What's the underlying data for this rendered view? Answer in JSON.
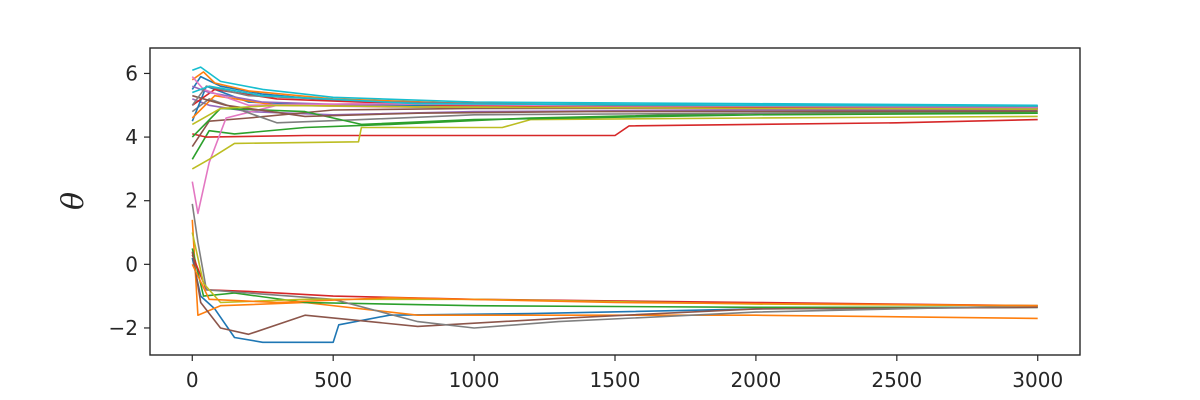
{
  "chart_data": {
    "type": "line",
    "ylabel": "θ",
    "xlabel": "",
    "xlim": [
      -150,
      3150
    ],
    "ylim": [
      -2.85,
      6.8
    ],
    "xticks": [
      0,
      500,
      1000,
      1500,
      2000,
      2500,
      3000
    ],
    "yticks": [
      -2,
      0,
      2,
      4,
      6
    ],
    "xtick_labels": [
      "0",
      "500",
      "1000",
      "1500",
      "2000",
      "2500",
      "3000"
    ],
    "ytick_labels": [
      "−2",
      "0",
      "2",
      "4",
      "6"
    ],
    "grid": false,
    "legend": "none",
    "palette": [
      "#1f77b4",
      "#ff7f0e",
      "#2ca02c",
      "#d62728",
      "#9467bd",
      "#8c564b",
      "#e377c2",
      "#7f7f7f",
      "#bcbd22",
      "#17becf"
    ],
    "upper_group": {
      "description": "chains converging near θ ≈ 4.9",
      "series": [
        {
          "color": "#1f77b4",
          "points": [
            [
              0,
              5.5
            ],
            [
              30,
              5.9
            ],
            [
              100,
              5.6
            ],
            [
              250,
              5.35
            ],
            [
              500,
              5.15
            ],
            [
              1000,
              5.05
            ],
            [
              2000,
              5.0
            ],
            [
              3000,
              4.97
            ]
          ]
        },
        {
          "color": "#ff7f0e",
          "points": [
            [
              0,
              5.8
            ],
            [
              40,
              6.05
            ],
            [
              80,
              5.7
            ],
            [
              200,
              5.45
            ],
            [
              500,
              5.2
            ],
            [
              1000,
              5.05
            ],
            [
              2000,
              4.98
            ],
            [
              3000,
              4.95
            ]
          ]
        },
        {
          "color": "#2ca02c",
          "points": [
            [
              0,
              3.3
            ],
            [
              60,
              4.2
            ],
            [
              150,
              4.1
            ],
            [
              400,
              4.3
            ],
            [
              700,
              4.4
            ],
            [
              1200,
              4.6
            ],
            [
              2000,
              4.75
            ],
            [
              3000,
              4.8
            ]
          ]
        },
        {
          "color": "#d62728",
          "points": [
            [
              0,
              4.1
            ],
            [
              50,
              4.0
            ],
            [
              400,
              4.05
            ],
            [
              1500,
              4.05
            ],
            [
              1550,
              4.35
            ],
            [
              2500,
              4.45
            ],
            [
              3000,
              4.55
            ]
          ]
        },
        {
          "color": "#9467bd",
          "points": [
            [
              0,
              5.2
            ],
            [
              60,
              5.0
            ],
            [
              200,
              4.8
            ],
            [
              500,
              4.7
            ],
            [
              1000,
              4.8
            ],
            [
              2000,
              4.85
            ],
            [
              3000,
              4.85
            ]
          ]
        },
        {
          "color": "#8c564b",
          "points": [
            [
              0,
              3.7
            ],
            [
              60,
              4.5
            ],
            [
              200,
              4.6
            ],
            [
              500,
              4.85
            ],
            [
              1000,
              4.9
            ],
            [
              2000,
              4.9
            ],
            [
              3000,
              4.88
            ]
          ]
        },
        {
          "color": "#e377c2",
          "points": [
            [
              0,
              2.6
            ],
            [
              20,
              1.6
            ],
            [
              60,
              3.2
            ],
            [
              120,
              4.6
            ],
            [
              300,
              5.0
            ],
            [
              700,
              4.95
            ],
            [
              1500,
              4.93
            ],
            [
              3000,
              4.9
            ]
          ]
        },
        {
          "color": "#7f7f7f",
          "points": [
            [
              0,
              4.8
            ],
            [
              60,
              5.2
            ],
            [
              300,
              4.45
            ],
            [
              600,
              4.55
            ],
            [
              1000,
              4.7
            ],
            [
              2000,
              4.75
            ],
            [
              3000,
              4.75
            ]
          ]
        },
        {
          "color": "#bcbd22",
          "points": [
            [
              0,
              3.0
            ],
            [
              60,
              3.3
            ],
            [
              150,
              3.8
            ],
            [
              590,
              3.85
            ],
            [
              600,
              4.3
            ],
            [
              1100,
              4.3
            ],
            [
              1200,
              4.55
            ],
            [
              2000,
              4.6
            ],
            [
              3000,
              4.65
            ]
          ]
        },
        {
          "color": "#17becf",
          "points": [
            [
              0,
              6.1
            ],
            [
              30,
              6.2
            ],
            [
              100,
              5.75
            ],
            [
              250,
              5.5
            ],
            [
              500,
              5.25
            ],
            [
              1000,
              5.1
            ],
            [
              2000,
              5.05
            ],
            [
              3000,
              5.0
            ]
          ]
        },
        {
          "color": "#1f77b4",
          "points": [
            [
              0,
              4.5
            ],
            [
              50,
              5.6
            ],
            [
              200,
              5.1
            ],
            [
              500,
              5.0
            ],
            [
              1200,
              5.0
            ],
            [
              3000,
              4.97
            ]
          ]
        },
        {
          "color": "#ff7f0e",
          "points": [
            [
              0,
              4.6
            ],
            [
              80,
              5.3
            ],
            [
              300,
              5.0
            ],
            [
              800,
              4.95
            ],
            [
              2000,
              4.92
            ],
            [
              3000,
              4.9
            ]
          ]
        },
        {
          "color": "#2ca02c",
          "points": [
            [
              0,
              4.0
            ],
            [
              100,
              4.9
            ],
            [
              400,
              4.8
            ],
            [
              600,
              4.4
            ],
            [
              1000,
              4.55
            ],
            [
              2000,
              4.7
            ],
            [
              3000,
              4.75
            ]
          ]
        },
        {
          "color": "#d62728",
          "points": [
            [
              0,
              5.0
            ],
            [
              80,
              5.5
            ],
            [
              300,
              5.2
            ],
            [
              900,
              5.0
            ],
            [
              2000,
              4.95
            ],
            [
              3000,
              4.92
            ]
          ]
        },
        {
          "color": "#9467bd",
          "points": [
            [
              0,
              5.6
            ],
            [
              60,
              5.4
            ],
            [
              250,
              5.1
            ],
            [
              800,
              4.95
            ],
            [
              2000,
              4.9
            ],
            [
              3000,
              4.9
            ]
          ]
        },
        {
          "color": "#8c564b",
          "points": [
            [
              0,
              5.3
            ],
            [
              120,
              5.0
            ],
            [
              400,
              4.65
            ],
            [
              800,
              4.75
            ],
            [
              1400,
              4.8
            ],
            [
              3000,
              4.82
            ]
          ]
        },
        {
          "color": "#e377c2",
          "points": [
            [
              0,
              5.9
            ],
            [
              40,
              5.5
            ],
            [
              200,
              5.0
            ],
            [
              600,
              5.05
            ],
            [
              1500,
              4.98
            ],
            [
              3000,
              4.95
            ]
          ]
        },
        {
          "color": "#7f7f7f",
          "points": [
            [
              0,
              5.0
            ],
            [
              50,
              5.6
            ],
            [
              200,
              5.3
            ],
            [
              700,
              5.1
            ],
            [
              1500,
              5.0
            ],
            [
              3000,
              4.97
            ]
          ]
        },
        {
          "color": "#bcbd22",
          "points": [
            [
              0,
              4.4
            ],
            [
              100,
              4.9
            ],
            [
              300,
              5.0
            ],
            [
              800,
              4.95
            ],
            [
              2000,
              4.9
            ],
            [
              3000,
              4.88
            ]
          ]
        },
        {
          "color": "#17becf",
          "points": [
            [
              0,
              5.4
            ],
            [
              60,
              5.6
            ],
            [
              250,
              5.3
            ],
            [
              800,
              5.05
            ],
            [
              2000,
              5.0
            ],
            [
              3000,
              4.98
            ]
          ]
        }
      ]
    },
    "lower_group": {
      "description": "chains converging near θ ≈ −1.3",
      "series": [
        {
          "color": "#1f77b4",
          "points": [
            [
              0,
              0.2
            ],
            [
              30,
              -1.0
            ],
            [
              80,
              -1.4
            ],
            [
              150,
              -2.3
            ],
            [
              250,
              -2.45
            ],
            [
              500,
              -2.45
            ],
            [
              520,
              -1.9
            ],
            [
              700,
              -1.6
            ],
            [
              1200,
              -1.55
            ],
            [
              2000,
              -1.4
            ],
            [
              3000,
              -1.35
            ]
          ]
        },
        {
          "color": "#ff7f0e",
          "points": [
            [
              0,
              1.4
            ],
            [
              20,
              -1.6
            ],
            [
              100,
              -1.3
            ],
            [
              400,
              -1.2
            ],
            [
              800,
              -1.6
            ],
            [
              2000,
              -1.6
            ],
            [
              3000,
              -1.7
            ]
          ]
        },
        {
          "color": "#2ca02c",
          "points": [
            [
              0,
              0.5
            ],
            [
              40,
              -1.0
            ],
            [
              150,
              -0.9
            ],
            [
              400,
              -1.2
            ],
            [
              1000,
              -1.3
            ],
            [
              2000,
              -1.35
            ],
            [
              3000,
              -1.35
            ]
          ]
        },
        {
          "color": "#d62728",
          "points": [
            [
              0,
              0.3
            ],
            [
              50,
              -0.8
            ],
            [
              200,
              -0.85
            ],
            [
              500,
              -1.0
            ],
            [
              1000,
              -1.1
            ],
            [
              2000,
              -1.2
            ],
            [
              3000,
              -1.3
            ]
          ]
        },
        {
          "color": "#8c564b",
          "points": [
            [
              0,
              0.4
            ],
            [
              30,
              -1.2
            ],
            [
              100,
              -2.0
            ],
            [
              200,
              -2.2
            ],
            [
              400,
              -1.6
            ],
            [
              800,
              -1.95
            ],
            [
              1300,
              -1.7
            ],
            [
              2000,
              -1.4
            ],
            [
              3000,
              -1.35
            ]
          ]
        },
        {
          "color": "#7f7f7f",
          "points": [
            [
              0,
              1.9
            ],
            [
              20,
              0.7
            ],
            [
              50,
              -0.8
            ],
            [
              200,
              -0.9
            ],
            [
              500,
              -1.1
            ],
            [
              800,
              -1.8
            ],
            [
              1000,
              -2.0
            ],
            [
              1300,
              -1.8
            ],
            [
              2000,
              -1.5
            ],
            [
              3000,
              -1.3
            ]
          ]
        },
        {
          "color": "#bcbd22",
          "points": [
            [
              0,
              1.0
            ],
            [
              40,
              -0.6
            ],
            [
              100,
              -1.2
            ],
            [
              400,
              -1.1
            ],
            [
              1000,
              -1.1
            ],
            [
              2000,
              -1.25
            ],
            [
              3000,
              -1.3
            ]
          ]
        },
        {
          "color": "#ff7f0e",
          "points": [
            [
              0,
              0.0
            ],
            [
              60,
              -1.1
            ],
            [
              300,
              -1.2
            ],
            [
              700,
              -1.05
            ],
            [
              1500,
              -1.2
            ],
            [
              3000,
              -1.3
            ]
          ]
        }
      ]
    }
  }
}
